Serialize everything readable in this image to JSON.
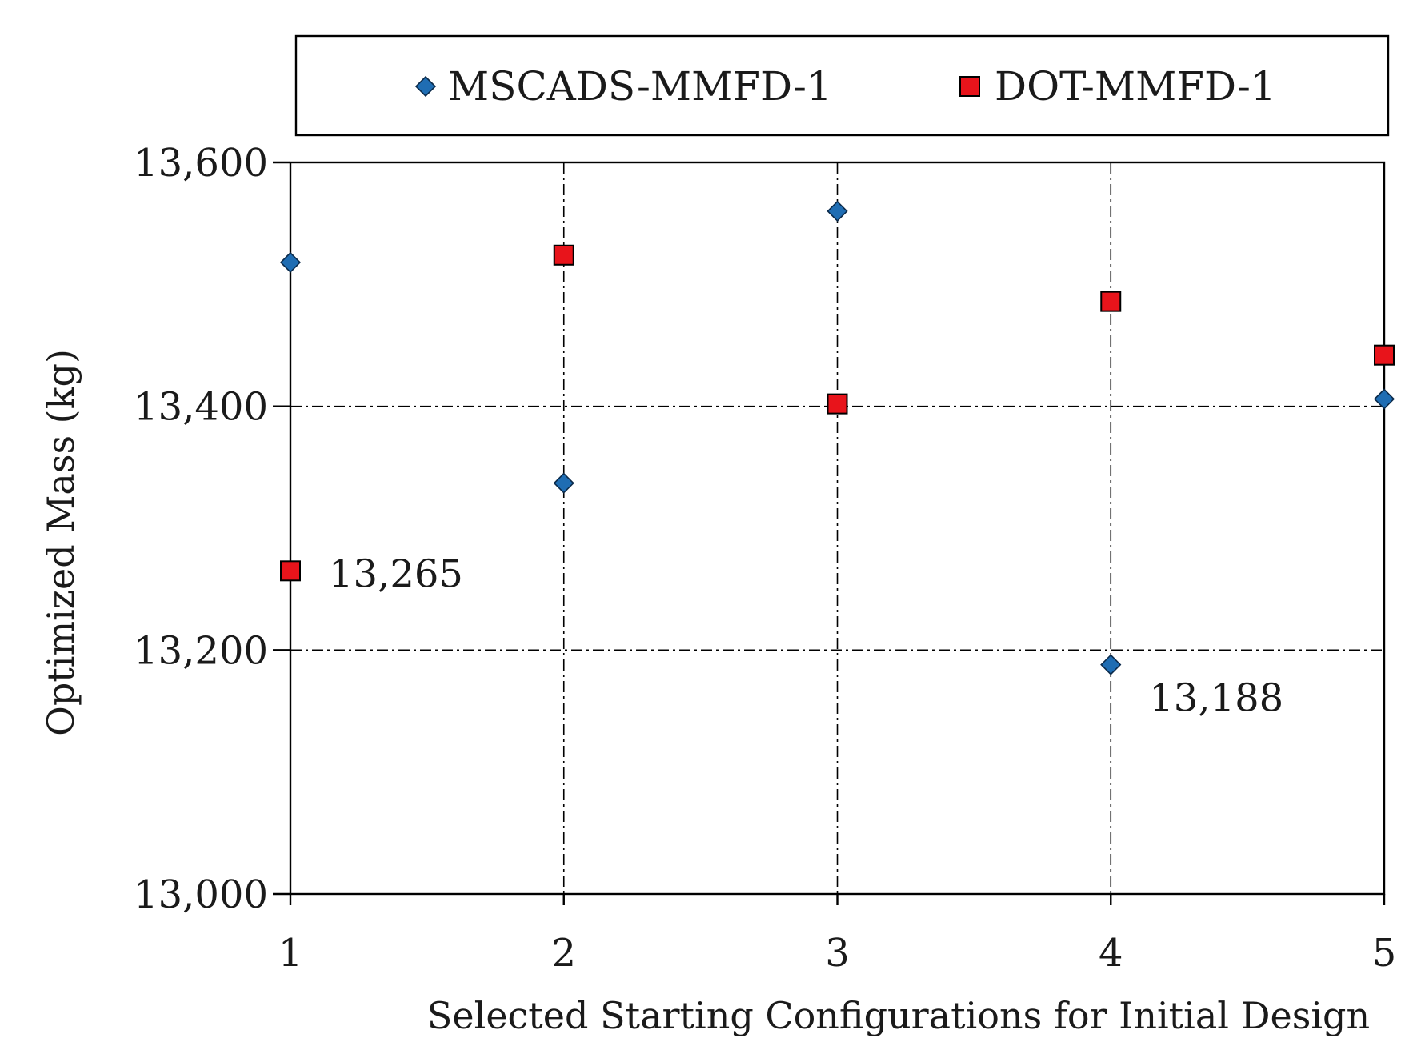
{
  "chart_data": {
    "type": "scatter",
    "title": "",
    "xlabel": "Selected Starting Configurations for Initial Design",
    "ylabel": "Optimized Mass (kg)",
    "x": [
      1,
      2,
      3,
      4,
      5
    ],
    "xlim": [
      1,
      5
    ],
    "ylim": [
      13000,
      13600
    ],
    "xticks": [
      "1",
      "2",
      "3",
      "4",
      "5"
    ],
    "yticks": [
      13000,
      13200,
      13400,
      13600
    ],
    "ytick_labels": [
      "13,000",
      "13,200",
      "13,400",
      "13,600"
    ],
    "grid": true,
    "legend_position": "top",
    "series": [
      {
        "name": "MSCADS-MMFD-1",
        "marker": "diamond",
        "color": "#1f6db3",
        "x": [
          1,
          2,
          3,
          4,
          5
        ],
        "y": [
          13518,
          13337,
          13560,
          13188,
          13406
        ]
      },
      {
        "name": "DOT-MMFD-1",
        "marker": "square",
        "color": "#e8141b",
        "x": [
          1,
          2,
          3,
          4,
          5
        ],
        "y": [
          13265,
          13524,
          13402,
          13486,
          13442
        ]
      }
    ],
    "annotations": [
      {
        "text": "13,265",
        "series": "DOT-MMFD-1",
        "x": 1,
        "y": 13265
      },
      {
        "text": "13,188",
        "series": "MSCADS-MMFD-1",
        "x": 4,
        "y": 13188
      }
    ]
  }
}
